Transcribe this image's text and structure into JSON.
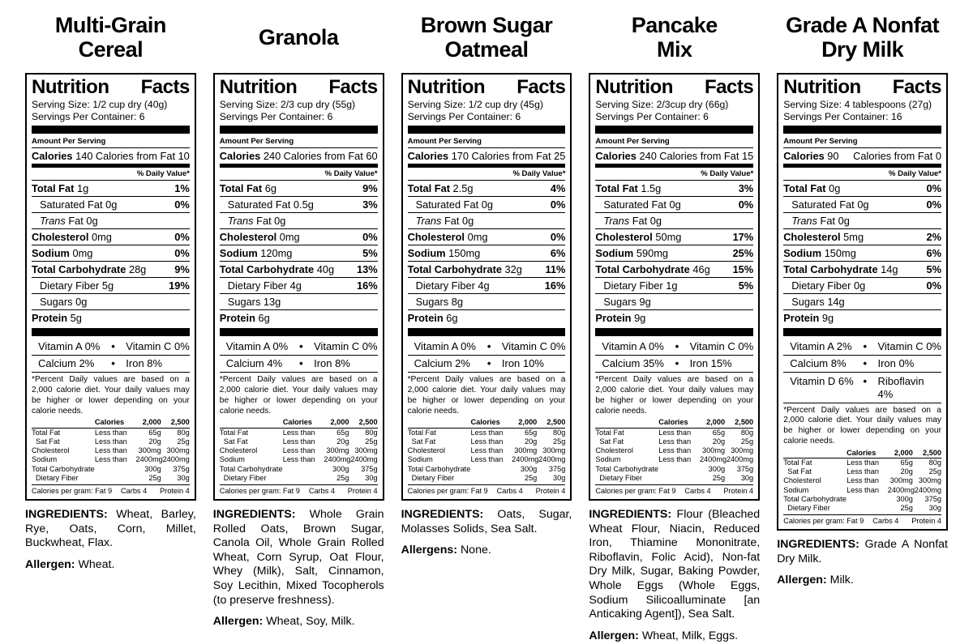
{
  "shared": {
    "heading_words": [
      "Nutrition",
      "Facts"
    ],
    "amount_per_serving": "Amount Per Serving",
    "calories_label": "Calories",
    "daily_value_header": "% Daily Value*",
    "bullet": "•",
    "footnote": "*Percent Daily values are based on a 2,000 calorie diet. Your daily values may be higher or lower depending on your calorie needs.",
    "text_color": "#000000",
    "background_color": "#ffffff"
  },
  "footnote_table": {
    "header": [
      "",
      "Calories",
      "2,000",
      "2,500"
    ],
    "rows": [
      {
        "c": [
          "Total Fat",
          "Less than",
          "65g",
          "80g"
        ]
      },
      {
        "c": [
          "Sat Fat",
          "Less than",
          "20g",
          "25g"
        ],
        "indent": true
      },
      {
        "c": [
          "Cholesterol",
          "Less than",
          "300mg",
          "300mg"
        ]
      },
      {
        "c": [
          "Sodium",
          "Less than",
          "2400mg",
          "2400mg"
        ]
      },
      {
        "c": [
          "Total Carbohydrate",
          "",
          "300g",
          "375g"
        ]
      },
      {
        "c": [
          "Dietary Fiber",
          "",
          "25g",
          "30g"
        ],
        "indent": true
      }
    ],
    "calories_per_gram": [
      "Calories per gram: Fat 9",
      "Carbs 4",
      "Protein 4"
    ]
  },
  "labels": [
    {
      "title_lines": [
        "Multi-Grain",
        "Cereal"
      ],
      "serving_size": "Serving Size: 1/2 cup dry (40g)",
      "servings_per_container": "Servings Per Container: 6",
      "calories": "140",
      "calories_from_fat": "Calories from Fat 10",
      "nutrients": [
        {
          "name": "Total Fat",
          "amount": "1g",
          "pct": "1%",
          "style": "bold",
          "indent": false
        },
        {
          "name": "Saturated Fat",
          "amount": "0g",
          "pct": "0%",
          "style": "plain",
          "indent": true
        },
        {
          "name": "Trans",
          "amount": "Fat 0g",
          "pct": "",
          "style": "italic",
          "indent": true
        },
        {
          "name": "Cholesterol",
          "amount": "0mg",
          "pct": "0%",
          "style": "bold",
          "indent": false
        },
        {
          "name": "Sodium",
          "amount": "0mg",
          "pct": "0%",
          "style": "bold",
          "indent": false
        },
        {
          "name": "Total Carbohydrate",
          "amount": "28g",
          "pct": "9%",
          "style": "bold",
          "indent": false
        },
        {
          "name": "Dietary Fiber",
          "amount": "5g",
          "pct": "19%",
          "style": "plain",
          "indent": true
        },
        {
          "name": "Sugars",
          "amount": "0g",
          "pct": "",
          "style": "plain",
          "indent": true
        },
        {
          "name": "Protein",
          "amount": "5g",
          "pct": "",
          "style": "bold",
          "indent": false
        }
      ],
      "vitamins": [
        [
          "Vitamin A 0%",
          "Vitamin C 0%"
        ],
        [
          "Calcium 2%",
          "Iron 8%"
        ]
      ],
      "ingredients_label": "INGREDIENTS:",
      "ingredients": "Wheat, Barley, Rye, Oats, Corn, Millet, Buckwheat, Flax.",
      "allergen_label": "Allergen:",
      "allergen": "Wheat."
    },
    {
      "title_lines": [
        "Granola"
      ],
      "serving_size": "Serving Size: 2/3 cup dry (55g)",
      "servings_per_container": "Servings Per Container: 6",
      "calories": "240",
      "calories_from_fat": "Calories from Fat 60",
      "nutrients": [
        {
          "name": "Total Fat",
          "amount": "6g",
          "pct": "9%",
          "style": "bold",
          "indent": false
        },
        {
          "name": "Saturated Fat",
          "amount": "0.5g",
          "pct": "3%",
          "style": "plain",
          "indent": true
        },
        {
          "name": "Trans",
          "amount": "Fat 0g",
          "pct": "",
          "style": "italic",
          "indent": true
        },
        {
          "name": "Cholesterol",
          "amount": "0mg",
          "pct": "0%",
          "style": "bold",
          "indent": false
        },
        {
          "name": "Sodium",
          "amount": "120mg",
          "pct": "5%",
          "style": "bold",
          "indent": false
        },
        {
          "name": "Total Carbohydrate",
          "amount": "40g",
          "pct": "13%",
          "style": "bold",
          "indent": false
        },
        {
          "name": "Dietary Fiber",
          "amount": "4g",
          "pct": "16%",
          "style": "plain",
          "indent": true
        },
        {
          "name": "Sugars",
          "amount": "13g",
          "pct": "",
          "style": "plain",
          "indent": true
        },
        {
          "name": "Protein",
          "amount": "6g",
          "pct": "",
          "style": "bold",
          "indent": false
        }
      ],
      "vitamins": [
        [
          "Vitamin A 0%",
          "Vitamin C 0%"
        ],
        [
          "Calcium 4%",
          "Iron 8%"
        ]
      ],
      "ingredients_label": "INGREDIENTS:",
      "ingredients": "Whole Grain Rolled Oats, Brown Sugar, Canola Oil, Whole Grain Rolled Wheat, Corn Syrup, Oat Flour, Whey (Milk), Salt, Cinnamon, Soy Lecithin, Mixed Tocopherols (to preserve freshness).",
      "allergen_label": "Allergen:",
      "allergen": "Wheat, Soy, Milk."
    },
    {
      "title_lines": [
        "Brown Sugar",
        "Oatmeal"
      ],
      "serving_size": "Serving Size: 1/2 cup dry (45g)",
      "servings_per_container": "Servings Per Container: 6",
      "calories": "170",
      "calories_from_fat": "Calories from Fat 25",
      "nutrients": [
        {
          "name": "Total Fat",
          "amount": "2.5g",
          "pct": "4%",
          "style": "bold",
          "indent": false
        },
        {
          "name": "Saturated Fat",
          "amount": "0g",
          "pct": "0%",
          "style": "plain",
          "indent": true
        },
        {
          "name": "Trans",
          "amount": "Fat 0g",
          "pct": "",
          "style": "italic",
          "indent": true
        },
        {
          "name": "Cholesterol",
          "amount": "0mg",
          "pct": "0%",
          "style": "bold",
          "indent": false
        },
        {
          "name": "Sodium",
          "amount": "150mg",
          "pct": "6%",
          "style": "bold",
          "indent": false
        },
        {
          "name": "Total Carbohydrate",
          "amount": "32g",
          "pct": "11%",
          "style": "bold",
          "indent": false
        },
        {
          "name": "Dietary Fiber",
          "amount": "4g",
          "pct": "16%",
          "style": "plain",
          "indent": true
        },
        {
          "name": "Sugars",
          "amount": "8g",
          "pct": "",
          "style": "plain",
          "indent": true
        },
        {
          "name": "Protein",
          "amount": "6g",
          "pct": "",
          "style": "bold",
          "indent": false
        }
      ],
      "vitamins": [
        [
          "Vitamin A 0%",
          "Vitamin C 0%"
        ],
        [
          "Calcium 2%",
          "Iron 10%"
        ]
      ],
      "ingredients_label": "INGREDIENTS:",
      "ingredients": "Oats, Sugar, Molasses Solids, Sea Salt.",
      "allergen_label": "Allergens:",
      "allergen": "None."
    },
    {
      "title_lines": [
        "Pancake",
        "Mix"
      ],
      "serving_size": "Serving Size: 2/3cup dry (66g)",
      "servings_per_container": "Servings Per Container: 6",
      "calories": "240",
      "calories_from_fat": "Calories from Fat 15",
      "nutrients": [
        {
          "name": "Total Fat",
          "amount": "1.5g",
          "pct": "3%",
          "style": "bold",
          "indent": false
        },
        {
          "name": "Saturated Fat",
          "amount": "0g",
          "pct": "0%",
          "style": "plain",
          "indent": true
        },
        {
          "name": "Trans",
          "amount": "Fat 0g",
          "pct": "",
          "style": "italic",
          "indent": true
        },
        {
          "name": "Cholesterol",
          "amount": "50mg",
          "pct": "17%",
          "style": "bold",
          "indent": false
        },
        {
          "name": "Sodium",
          "amount": "590mg",
          "pct": "25%",
          "style": "bold",
          "indent": false
        },
        {
          "name": "Total Carbohydrate",
          "amount": "46g",
          "pct": "15%",
          "style": "bold",
          "indent": false
        },
        {
          "name": "Dietary Fiber",
          "amount": "1g",
          "pct": "5%",
          "style": "plain",
          "indent": true
        },
        {
          "name": "Sugars",
          "amount": "9g",
          "pct": "",
          "style": "plain",
          "indent": true
        },
        {
          "name": "Protein",
          "amount": "9g",
          "pct": "",
          "style": "bold",
          "indent": false
        }
      ],
      "vitamins": [
        [
          "Vitamin A 0%",
          "Vitamin C 0%"
        ],
        [
          "Calcium 35%",
          "Iron 15%"
        ]
      ],
      "ingredients_label": "INGREDIENTS:",
      "ingredients": "Flour (Bleached Wheat Flour, Niacin, Reduced Iron, Thiamine Mononitrate, Riboflavin, Folic Acid), Non-fat Dry Milk, Sugar, Baking Powder, Whole Eggs (Whole Eggs, Sodium Silicoalluminate [an Anticaking Agent]), Sea Salt.",
      "allergen_label": "Allergen:",
      "allergen": "Wheat, Milk, Eggs."
    },
    {
      "title_lines": [
        "Grade A Nonfat",
        "Dry Milk"
      ],
      "serving_size": "Serving Size: 4 tablespoons (27g)",
      "servings_per_container": "Servings Per Container: 16",
      "calories": "90",
      "calories_from_fat": "Calories from Fat 0",
      "nutrients": [
        {
          "name": "Total Fat",
          "amount": "0g",
          "pct": "0%",
          "style": "bold",
          "indent": false
        },
        {
          "name": "Saturated Fat",
          "amount": "0g",
          "pct": "0%",
          "style": "plain",
          "indent": true
        },
        {
          "name": "Trans",
          "amount": "Fat 0g",
          "pct": "",
          "style": "italic",
          "indent": true
        },
        {
          "name": "Cholesterol",
          "amount": "5mg",
          "pct": "2%",
          "style": "bold",
          "indent": false
        },
        {
          "name": "Sodium",
          "amount": "150mg",
          "pct": "6%",
          "style": "bold",
          "indent": false
        },
        {
          "name": "Total Carbohydrate",
          "amount": "14g",
          "pct": "5%",
          "style": "bold",
          "indent": false
        },
        {
          "name": "Dietary Fiber",
          "amount": "0g",
          "pct": "0%",
          "style": "plain",
          "indent": true
        },
        {
          "name": "Sugars",
          "amount": "14g",
          "pct": "",
          "style": "plain",
          "indent": true
        },
        {
          "name": "Protein",
          "amount": "9g",
          "pct": "",
          "style": "bold",
          "indent": false
        }
      ],
      "vitamins": [
        [
          "Vitamin A 2%",
          "Vitamin C 0%"
        ],
        [
          "Calcium  8%",
          "Iron 0%"
        ],
        [
          "Vitamin D 6%",
          "Riboflavin 4%"
        ]
      ],
      "ingredients_label": "INGREDIENTS:",
      "ingredients": "Grade A Nonfat Dry Milk.",
      "allergen_label": "Allergen:",
      "allergen": "Milk."
    }
  ]
}
